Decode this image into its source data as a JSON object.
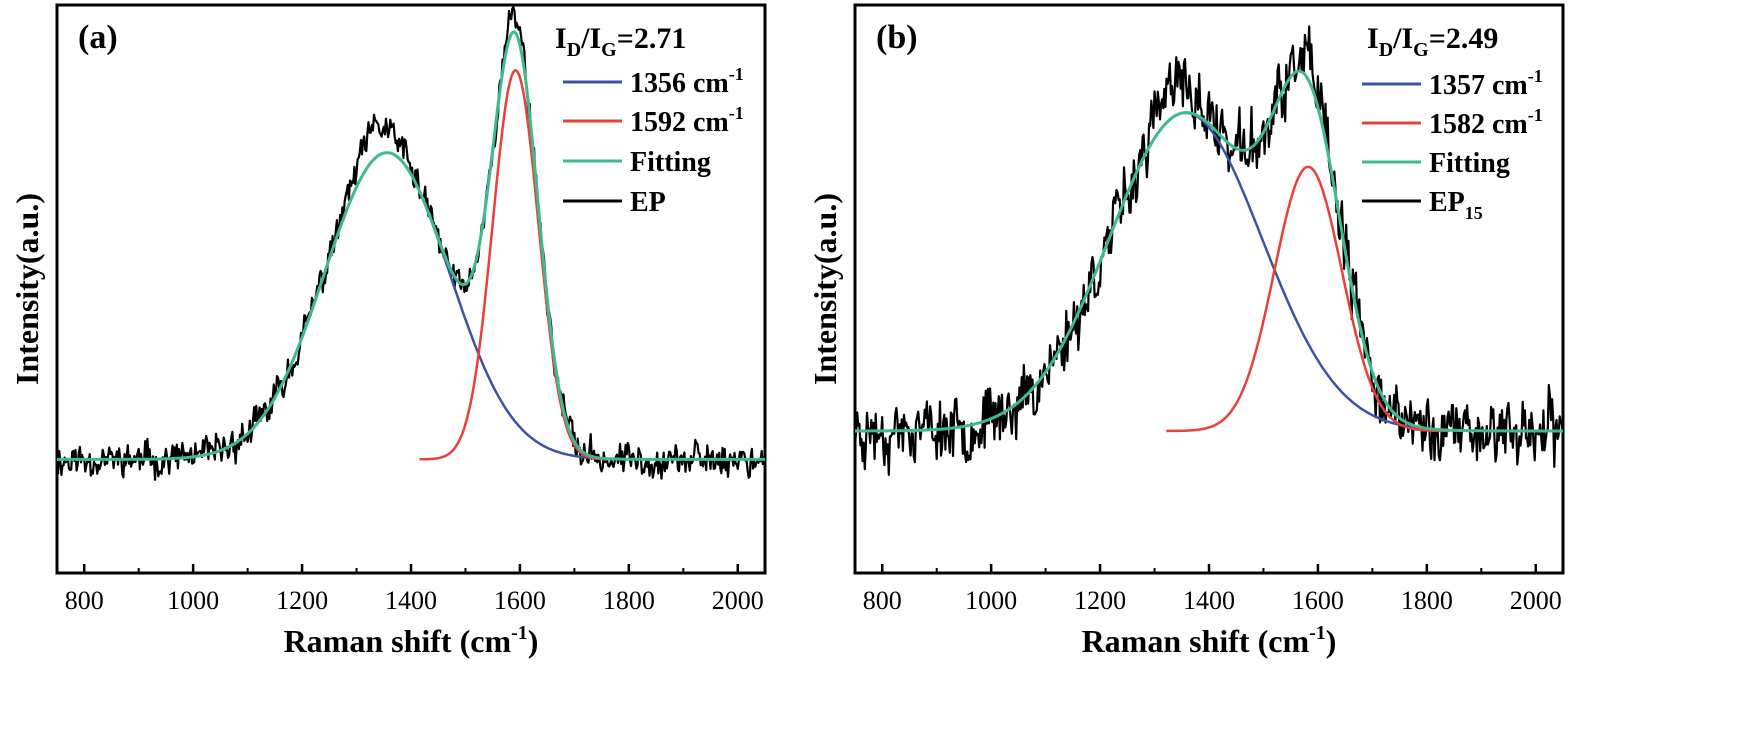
{
  "chart_data": [
    {
      "type": "line",
      "panel_label": "(a)",
      "ratio_label": {
        "main": "I",
        "sub1": "D",
        "slash": "/I",
        "sub2": "G",
        "value": "=2.71"
      },
      "xlabel": {
        "main": "Raman shift (cm",
        "sup": "-1",
        "close": ")"
      },
      "ylabel": "Intensity(a.u.)",
      "xlim": [
        750,
        2050
      ],
      "ylim": [
        0,
        1
      ],
      "xticks": [
        800,
        1000,
        1200,
        1400,
        1600,
        1800,
        2000
      ],
      "xtick_labels": [
        "800",
        "1000",
        "1200",
        "1400",
        "1600",
        "1800",
        "2000"
      ],
      "baseline": 0.2,
      "peaks": [
        {
          "name": "1356 cm-1",
          "center": 1356,
          "width": 115,
          "height": 0.54
        },
        {
          "name": "1592 cm-1",
          "center": 1592,
          "width": 42,
          "height": 0.685
        }
      ],
      "noise_amp": 0.018,
      "seed": 11,
      "series": [
        {
          "name": "1356 cm-1",
          "label": "1356 cm",
          "sup": "-1",
          "color": "#3a53a4",
          "kind": "peak",
          "index": 0
        },
        {
          "name": "1592 cm-1",
          "label": "1592 cm",
          "sup": "-1",
          "color": "#e8413a",
          "kind": "peak",
          "index": 1
        },
        {
          "name": "Fitting",
          "label": "Fitting",
          "sup": "",
          "color": "#3fba8c",
          "kind": "fit"
        },
        {
          "name": "EP",
          "label": "EP",
          "sub": "",
          "color": "#000000",
          "kind": "data"
        }
      ]
    },
    {
      "type": "line",
      "panel_label": "(b)",
      "ratio_label": {
        "main": "I",
        "sub1": "D",
        "slash": "/I",
        "sub2": "G",
        "value": "=2.49"
      },
      "xlabel": {
        "main": "Raman shift (cm",
        "sup": "-1",
        "close": ")"
      },
      "ylabel": "Intensity(a.u.)",
      "xlim": [
        750,
        2050
      ],
      "ylim": [
        0,
        1
      ],
      "xticks": [
        800,
        1000,
        1200,
        1400,
        1600,
        1800,
        2000
      ],
      "xtick_labels": [
        "800",
        "1000",
        "1200",
        "1400",
        "1600",
        "1800",
        "2000"
      ],
      "baseline": 0.25,
      "peaks": [
        {
          "name": "1357 cm-1",
          "center": 1357,
          "width": 140,
          "height": 0.56
        },
        {
          "name": "1582 cm-1",
          "center": 1582,
          "width": 62,
          "height": 0.465
        }
      ],
      "noise_amp": 0.035,
      "seed": 23,
      "series": [
        {
          "name": "1357 cm-1",
          "label": "1357 cm",
          "sup": "-1",
          "color": "#3a53a4",
          "kind": "peak",
          "index": 0
        },
        {
          "name": "1582 cm-1",
          "label": "1582 cm",
          "sup": "-1",
          "color": "#e8413a",
          "kind": "peak",
          "index": 1
        },
        {
          "name": "Fitting",
          "label": "Fitting",
          "sup": "",
          "color": "#3fba8c",
          "kind": "fit"
        },
        {
          "name": "EP15",
          "label": "EP",
          "sub": "15",
          "color": "#000000",
          "kind": "data"
        }
      ]
    }
  ]
}
